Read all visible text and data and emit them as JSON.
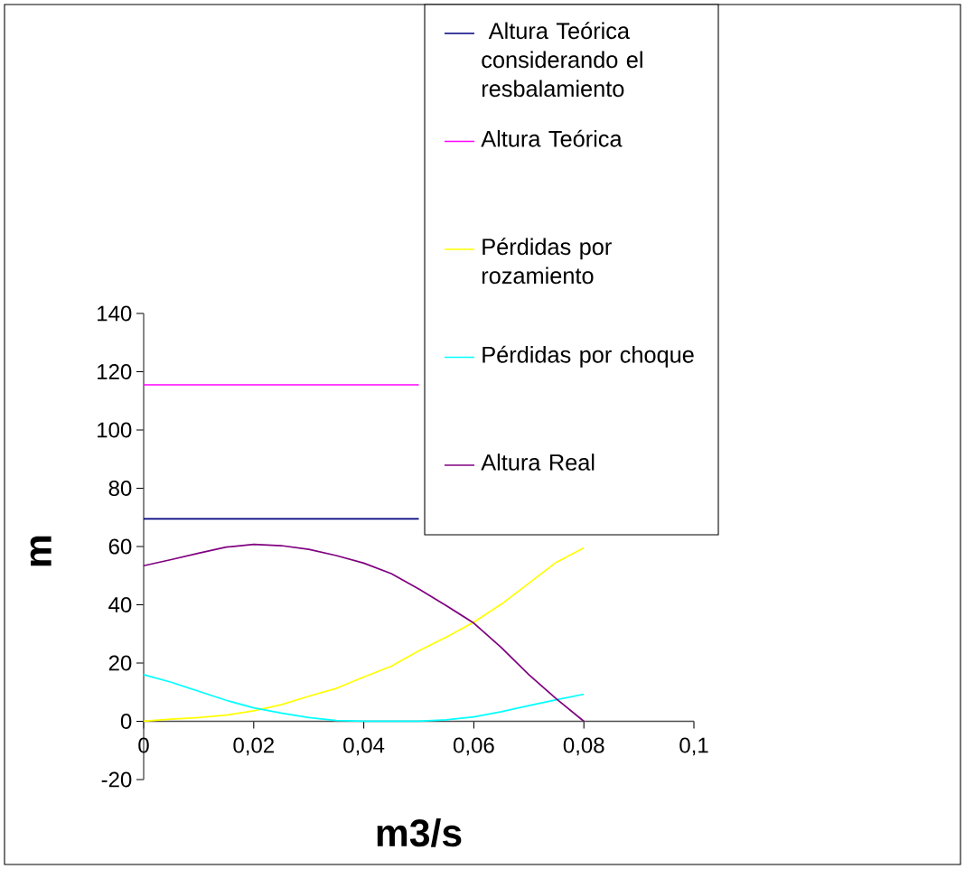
{
  "chart_data": {
    "type": "line",
    "xlabel": "m3/s",
    "ylabel": "m",
    "x": [
      0,
      0.005,
      0.01,
      0.015,
      0.02,
      0.025,
      0.03,
      0.035,
      0.04,
      0.045,
      0.05,
      0.055,
      0.06,
      0.065,
      0.07,
      0.075,
      0.08
    ],
    "series": [
      {
        "name": " Altura Teórica considerando el resbalamiento",
        "color": "#000080",
        "values": [
          69.5,
          69.5,
          69.5,
          69.5,
          69.5,
          69.5,
          69.5,
          69.5,
          69.5,
          69.5,
          69.5,
          null,
          null,
          null,
          null,
          null,
          null
        ]
      },
      {
        "name": "Altura Teórica",
        "color": "#ff00ff",
        "values": [
          115.5,
          115.5,
          115.5,
          115.5,
          115.5,
          115.5,
          115.5,
          115.5,
          115.5,
          115.5,
          115.5,
          null,
          null,
          null,
          null,
          null,
          null
        ]
      },
      {
        "name": "Pérdidas por rozamiento",
        "color": "#ffff00",
        "values": [
          0,
          0.7,
          1.3,
          2.1,
          3.6,
          5.7,
          8.6,
          11.3,
          15.2,
          18.9,
          24.2,
          28.9,
          34,
          40.2,
          47.4,
          54.6,
          59.5
        ]
      },
      {
        "name": "Pérdidas por choque",
        "color": "#00ffff",
        "values": [
          16,
          13.4,
          10.3,
          7.2,
          4.6,
          2.8,
          1.3,
          0.3,
          0,
          0,
          0,
          0.5,
          1.5,
          3.3,
          5.4,
          7.4,
          9.3
        ]
      },
      {
        "name": "Altura Real",
        "color": "#800080",
        "values": [
          53.4,
          55.5,
          57.7,
          59.8,
          60.7,
          60.3,
          59,
          56.9,
          54.3,
          50.7,
          45.4,
          39.7,
          33.7,
          25.3,
          16,
          7.7,
          0
        ]
      }
    ],
    "xlim": [
      0,
      0.1
    ],
    "xticks": [
      0,
      {
        "value": 0.02,
        "label": "0,02"
      },
      {
        "value": 0.04,
        "label": "0,04"
      },
      {
        "value": 0.06,
        "label": "0,06"
      },
      {
        "value": 0.08,
        "label": "0,08"
      },
      {
        "value": 0.1,
        "label": "0,1"
      }
    ],
    "ylim": [
      -20,
      140
    ],
    "yticks": [
      -20,
      0,
      20,
      40,
      60,
      80,
      100,
      120,
      140
    ],
    "legend": "top right"
  }
}
